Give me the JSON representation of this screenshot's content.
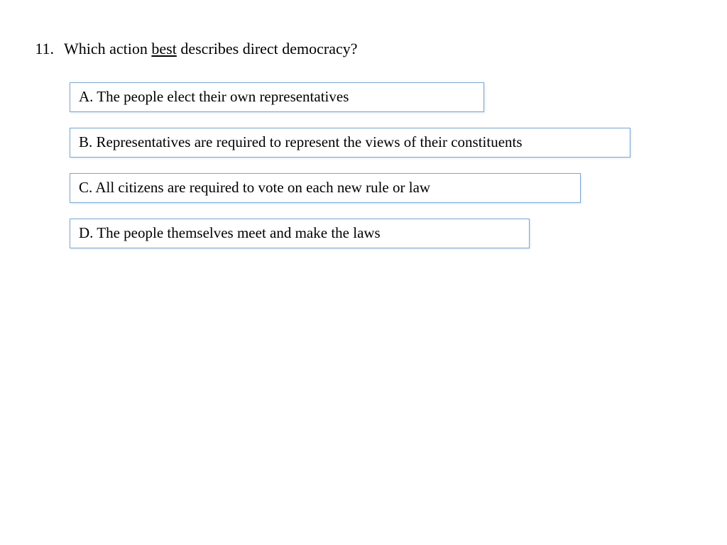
{
  "question": {
    "number": "11.",
    "text_before": "Which action ",
    "text_underlined": "best",
    "text_after": " describes direct democracy?"
  },
  "options": {
    "a": "A. The people elect their own representatives",
    "b": "B. Representatives are required to represent the views of their constituents",
    "c": "C. All citizens are required to vote on each new rule or law",
    "d": "D. The people themselves meet and make the laws"
  },
  "style": {
    "border_color": "#7ba7d0",
    "background_color": "#ffffff",
    "text_color": "#000000",
    "font_size_question": 22,
    "font_size_option": 21,
    "option_widths": {
      "a": 584,
      "b": 790,
      "c": 720,
      "d": 648
    }
  }
}
